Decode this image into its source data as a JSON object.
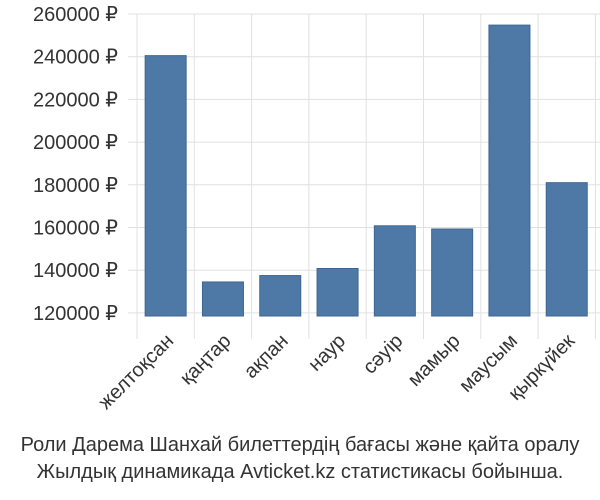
{
  "chart_data": {
    "type": "bar",
    "categories": [
      "желтоқсан",
      "қаңтар",
      "ақпан",
      "наур",
      "сәуір",
      "мамыр",
      "маусым",
      "қыркүйек"
    ],
    "values": [
      240500,
      134500,
      137500,
      140800,
      160800,
      159300,
      254800,
      181000
    ],
    "ylim": [
      112000,
      260000
    ],
    "yticks": [
      120000,
      140000,
      160000,
      180000,
      200000,
      220000,
      240000,
      260000
    ],
    "ytick_labels": [
      "120000 ₽",
      "140000 ₽",
      "160000 ₽",
      "180000 ₽",
      "200000 ₽",
      "220000 ₽",
      "240000 ₽",
      "260000 ₽"
    ],
    "grid": true,
    "bar_color": "#4e79a7",
    "grid_color": "#e0e0e0"
  },
  "caption": {
    "line1": "Роли Дарема Шанхай билеттердің бағасы және қайта оралу",
    "line2": "Жылдық динамикада Avticket.kz статистикасы бойынша."
  }
}
